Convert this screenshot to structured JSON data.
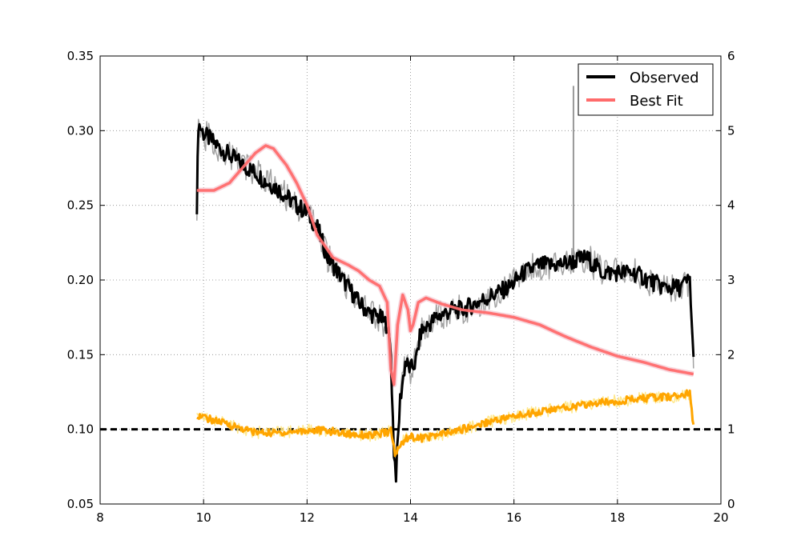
{
  "chart_data": {
    "type": "line",
    "title": "",
    "xlabel": "",
    "ylabel": "",
    "y2label": "",
    "xlim": [
      8,
      20
    ],
    "ylim": [
      0.05,
      0.35
    ],
    "y2lim": [
      0,
      6
    ],
    "x_ticks": [
      8,
      10,
      12,
      14,
      16,
      18,
      20
    ],
    "y_ticks": [
      0.05,
      0.1,
      0.15,
      0.2,
      0.25,
      0.3,
      0.35
    ],
    "y2_ticks": [
      0,
      1,
      2,
      3,
      4,
      5,
      6
    ],
    "x_tick_labels": [
      "8",
      "10",
      "12",
      "14",
      "16",
      "18",
      "20"
    ],
    "y_tick_labels": [
      "0.05",
      "0.10",
      "0.15",
      "0.20",
      "0.25",
      "0.30",
      "0.35"
    ],
    "y2_tick_labels": [
      "0",
      "1",
      "2",
      "3",
      "4",
      "5",
      "6"
    ],
    "grid": true,
    "legend": {
      "position": "top-right"
    },
    "reference_line": {
      "axis": "left",
      "y": 0.1,
      "style": "dashed",
      "color": "#000000"
    },
    "series": [
      {
        "name": "Observed",
        "axis": "left",
        "color": "#000000",
        "band_color": "#999999",
        "x": [
          9.87,
          9.9,
          10.0,
          10.2,
          10.4,
          10.6,
          10.8,
          11.0,
          11.2,
          11.4,
          11.6,
          11.8,
          12.0,
          12.2,
          12.4,
          12.6,
          12.8,
          13.0,
          13.2,
          13.4,
          13.55,
          13.62,
          13.68,
          13.72,
          13.8,
          13.9,
          14.0,
          14.1,
          14.2,
          14.5,
          14.8,
          15.0,
          15.3,
          15.6,
          15.9,
          16.2,
          16.5,
          16.8,
          17.1,
          17.4,
          17.7,
          18.0,
          18.3,
          18.6,
          18.9,
          19.2,
          19.4,
          19.47
        ],
        "values": [
          0.25,
          0.305,
          0.298,
          0.292,
          0.286,
          0.281,
          0.276,
          0.272,
          0.266,
          0.262,
          0.256,
          0.25,
          0.245,
          0.235,
          0.215,
          0.205,
          0.195,
          0.185,
          0.178,
          0.175,
          0.17,
          0.15,
          0.085,
          0.07,
          0.12,
          0.145,
          0.14,
          0.145,
          0.165,
          0.175,
          0.18,
          0.18,
          0.185,
          0.19,
          0.195,
          0.205,
          0.21,
          0.21,
          0.212,
          0.215,
          0.205,
          0.205,
          0.205,
          0.2,
          0.195,
          0.195,
          0.2,
          0.145
        ]
      },
      {
        "name": "Best Fit",
        "axis": "left",
        "color": "#ff6b6b",
        "band_color": "#f4c6d0",
        "x": [
          9.87,
          10.2,
          10.5,
          10.8,
          11.0,
          11.2,
          11.35,
          11.6,
          11.8,
          12.0,
          12.2,
          12.5,
          12.8,
          13.0,
          13.2,
          13.4,
          13.55,
          13.62,
          13.68,
          13.75,
          13.85,
          13.95,
          14.0,
          14.05,
          14.15,
          14.3,
          14.6,
          15.0,
          15.5,
          16.0,
          16.5,
          17.0,
          17.5,
          18.0,
          18.5,
          19.0,
          19.47
        ],
        "values": [
          0.26,
          0.26,
          0.265,
          0.277,
          0.285,
          0.29,
          0.288,
          0.277,
          0.265,
          0.25,
          0.23,
          0.215,
          0.21,
          0.206,
          0.2,
          0.196,
          0.185,
          0.14,
          0.13,
          0.17,
          0.19,
          0.18,
          0.166,
          0.17,
          0.185,
          0.188,
          0.184,
          0.18,
          0.178,
          0.175,
          0.17,
          0.162,
          0.155,
          0.149,
          0.145,
          0.14,
          0.137
        ]
      },
      {
        "name": "",
        "axis": "right",
        "color": "#ffa500",
        "band_color": "#ffe680",
        "x": [
          9.87,
          9.95,
          10.2,
          10.5,
          10.8,
          11.0,
          11.3,
          11.6,
          11.9,
          12.2,
          12.5,
          12.8,
          13.0,
          13.3,
          13.5,
          13.62,
          13.7,
          13.75,
          13.9,
          14.0,
          14.2,
          14.5,
          14.8,
          15.0,
          15.3,
          15.6,
          15.9,
          16.2,
          16.5,
          16.8,
          17.1,
          17.4,
          17.7,
          18.0,
          18.3,
          18.6,
          18.9,
          19.2,
          19.4,
          19.47
        ],
        "values": [
          1.2,
          1.17,
          1.12,
          1.06,
          1.0,
          0.96,
          0.95,
          0.96,
          0.98,
          0.99,
          0.97,
          0.94,
          0.93,
          0.92,
          0.95,
          0.98,
          0.68,
          0.72,
          0.88,
          0.9,
          0.88,
          0.92,
          0.96,
          1.0,
          1.06,
          1.12,
          1.16,
          1.2,
          1.24,
          1.27,
          1.3,
          1.33,
          1.36,
          1.38,
          1.4,
          1.42,
          1.43,
          1.45,
          1.48,
          1.05
        ]
      }
    ],
    "annotations": [
      {
        "series": "Observed",
        "type": "spike",
        "x": 17.15,
        "y": 0.33
      }
    ]
  }
}
